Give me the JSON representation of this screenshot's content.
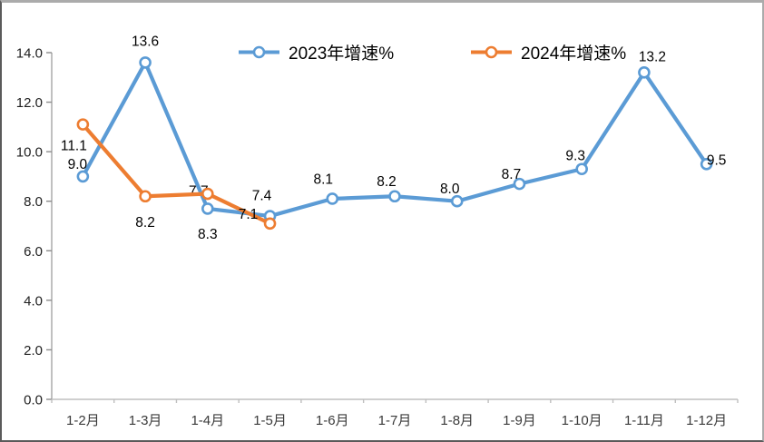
{
  "chart_data": {
    "type": "line",
    "title": "",
    "xlabel": "",
    "ylabel": "",
    "grid": false,
    "legend_position": "top-center",
    "marker_style": "open-circle",
    "categories": [
      "1-2月",
      "1-3月",
      "1-4月",
      "1-5月",
      "1-6月",
      "1-7月",
      "1-8月",
      "1-9月",
      "1-10月",
      "1-11月",
      "1-12月"
    ],
    "series": [
      {
        "name": "2023年增速%",
        "color": "#5B9BD5",
        "values": [
          9.0,
          13.6,
          7.7,
          7.4,
          8.1,
          8.2,
          8.0,
          8.7,
          9.3,
          13.2,
          9.5
        ],
        "point_labels": [
          "9.0",
          "13.6",
          "7.7",
          "7.4",
          "8.1",
          "8.2",
          "8.0",
          "8.7",
          "9.3",
          "13.2",
          "9.5"
        ]
      },
      {
        "name": "2024年增速%",
        "color": "#ED7D31",
        "values": [
          11.1,
          8.2,
          8.3,
          7.1
        ],
        "point_labels": [
          "11.1",
          "8.2",
          "8.3",
          "7.1"
        ]
      }
    ],
    "y_axis": {
      "min": 0,
      "max": 14,
      "step": 2,
      "tick_labels": [
        "0.0",
        "2.0",
        "4.0",
        "6.0",
        "8.0",
        "10.0",
        "12.0",
        "14.0"
      ]
    }
  }
}
